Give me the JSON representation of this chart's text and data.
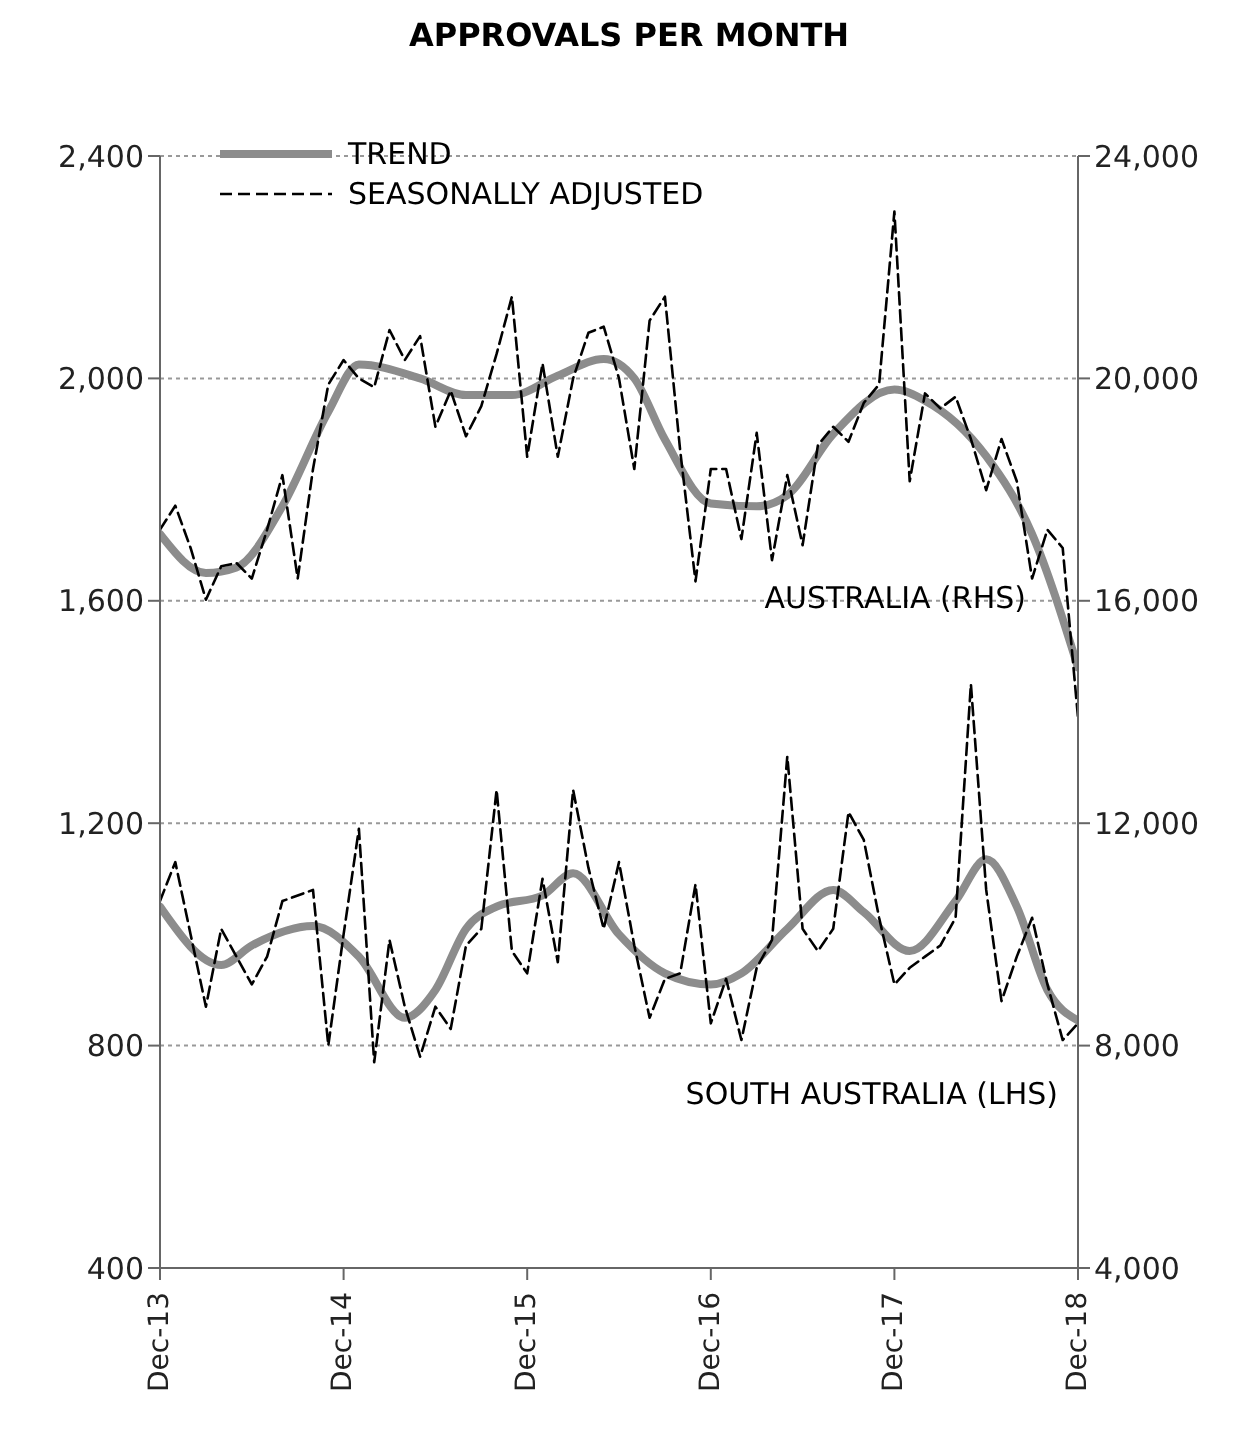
{
  "chart_data": {
    "type": "line",
    "title": "APPROVALS PER MONTH",
    "x": [
      "2013-12",
      "2014-01",
      "2014-02",
      "2014-03",
      "2014-04",
      "2014-05",
      "2014-06",
      "2014-07",
      "2014-08",
      "2014-09",
      "2014-10",
      "2014-11",
      "2014-12",
      "2015-01",
      "2015-02",
      "2015-03",
      "2015-04",
      "2015-05",
      "2015-06",
      "2015-07",
      "2015-08",
      "2015-09",
      "2015-10",
      "2015-11",
      "2015-12",
      "2016-01",
      "2016-02",
      "2016-03",
      "2016-04",
      "2016-05",
      "2016-06",
      "2016-07",
      "2016-08",
      "2016-09",
      "2016-10",
      "2016-11",
      "2016-12",
      "2017-01",
      "2017-02",
      "2017-03",
      "2017-04",
      "2017-05",
      "2017-06",
      "2017-07",
      "2017-08",
      "2017-09",
      "2017-10",
      "2017-11",
      "2017-12",
      "2018-01",
      "2018-02",
      "2018-03",
      "2018-04",
      "2018-05",
      "2018-06",
      "2018-07",
      "2018-08",
      "2018-09",
      "2018-10",
      "2018-11",
      "2018-12"
    ],
    "series": [
      {
        "name": "TREND",
        "color": "#8c8c8c",
        "axis": "y2",
        "line_style": "solid",
        "x": [
          "2013-12",
          "2014-03",
          "2014-05",
          "2014-08",
          "2014-11",
          "2015-01",
          "2015-05",
          "2015-08",
          "2015-11",
          "2016-02",
          "2016-05",
          "2016-07",
          "2016-09",
          "2016-12",
          "2017-03",
          "2017-05",
          "2017-08",
          "2017-12",
          "2018-02",
          "2018-06",
          "2018-09",
          "2018-12"
        ],
        "values": [
          17200,
          16500,
          16600,
          17700,
          19400,
          20250,
          20000,
          19700,
          19700,
          20050,
          20350,
          20000,
          18900,
          17750,
          17700,
          17900,
          19000,
          19800,
          19600,
          18600,
          17200,
          14800
        ]
      },
      {
        "name": "SEASONALLY ADJUSTED",
        "color": "#000000",
        "axis": "y2",
        "line_style": "dashed",
        "values": [
          17280,
          17710,
          16950,
          16020,
          16620,
          16680,
          16400,
          17280,
          18260,
          16400,
          18370,
          19890,
          20330,
          20000,
          19840,
          20870,
          20330,
          20760,
          19130,
          19780,
          18960,
          19500,
          20440,
          21470,
          18590,
          20270,
          18590,
          20000,
          20820,
          20930,
          20000,
          18370,
          21040,
          21470,
          18700,
          16350,
          18370,
          18370,
          17110,
          19020,
          16730,
          18260,
          17000,
          18800,
          19130,
          18860,
          19560,
          19890,
          23000,
          18150,
          19730,
          19460,
          19670,
          18910,
          17990,
          18910,
          18150,
          16400,
          17280,
          16950,
          13900
        ]
      },
      {
        "color": "#8c8c8c",
        "line_style": "solid",
        "x": [
          "2013-12",
          "2014-04",
          "2014-06",
          "2014-10",
          "2015-01",
          "2015-04",
          "2015-06",
          "2015-08",
          "2015-10",
          "2016-01",
          "2016-03",
          "2016-06",
          "2016-09",
          "2016-12",
          "2017-02",
          "2017-05",
          "2017-08",
          "2017-10",
          "2018-01",
          "2018-04",
          "2018-06",
          "2018-08",
          "2018-10",
          "2018-12"
        ],
        "values": [
          1050,
          945,
          980,
          1015,
          960,
          850,
          900,
          1010,
          1050,
          1070,
          1110,
          1000,
          930,
          910,
          930,
          1010,
          1080,
          1040,
          970,
          1060,
          1135,
          1050,
          900,
          845
        ]
      },
      {
        "color": "#000000",
        "line_style": "dashed",
        "values": [
          1060,
          1130,
          1000,
          870,
          1010,
          960,
          910,
          960,
          1060,
          1070,
          1080,
          800,
          1000,
          1190,
          770,
          990,
          870,
          780,
          870,
          830,
          980,
          1010,
          1260,
          970,
          930,
          1100,
          950,
          1260,
          1120,
          1010,
          1130,
          980,
          850,
          920,
          930,
          1090,
          840,
          920,
          810,
          940,
          990,
          1320,
          1010,
          970,
          1010,
          1220,
          1170,
          1030,
          910,
          940,
          960,
          980,
          1030,
          1450,
          1080,
          880,
          960,
          1030,
          910,
          810,
          840
        ]
      }
    ],
    "xlim": [
      "2013-12",
      "2018-12"
    ],
    "xticks": [
      {
        "value": "2013-12",
        "label": "Dec-13"
      },
      {
        "value": "2014-12",
        "label": "Dec-14"
      },
      {
        "value": "2015-12",
        "label": "Dec-15"
      },
      {
        "value": "2016-12",
        "label": "Dec-16"
      },
      {
        "value": "2017-12",
        "label": "Dec-17"
      },
      {
        "value": "2018-12",
        "label": "Dec-18"
      }
    ],
    "ylim": [
      400,
      2400
    ],
    "yticks": [
      400,
      800,
      {
        "value": 1200,
        "label": "1,200"
      },
      {
        "value": 1600,
        "label": "1,600"
      },
      {
        "value": 2000,
        "label": "2,000"
      },
      {
        "value": 2400,
        "label": "2,400"
      }
    ],
    "y2lim": [
      4000,
      24000
    ],
    "y2ticks": [
      {
        "value": 4000,
        "label": "4,000"
      },
      {
        "value": 8000,
        "label": "8,000"
      },
      {
        "value": 12000,
        "label": "12,000"
      },
      {
        "value": 16000,
        "label": "16,000"
      },
      {
        "value": 20000,
        "label": "20,000"
      },
      {
        "value": 24000,
        "label": "24,000"
      }
    ],
    "grid": "y",
    "legend": "top left",
    "annotations": [
      "AUSTRALIA (RHS)",
      "SOUTH AUSTRALIA (LHS)"
    ]
  }
}
